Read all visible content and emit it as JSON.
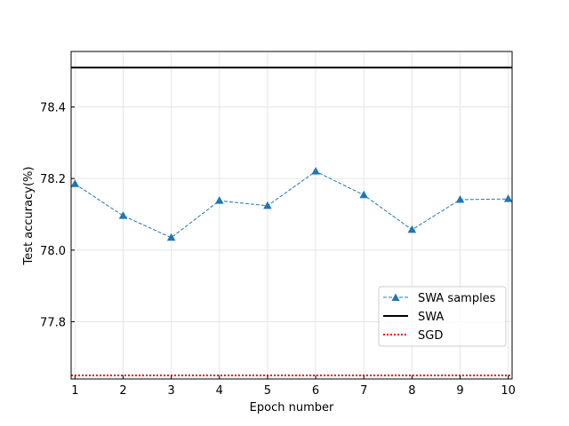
{
  "chart_data": {
    "type": "line",
    "title": "",
    "xlabel": "Epoch number",
    "ylabel": "Test accuracy(%)",
    "x": [
      1,
      2,
      3,
      4,
      5,
      6,
      7,
      8,
      9,
      10
    ],
    "xlim": [
      0.92,
      10.08
    ],
    "ylim": [
      77.64,
      78.555
    ],
    "xticks": [
      "1",
      "2",
      "3",
      "4",
      "5",
      "6",
      "7",
      "8",
      "9",
      "10"
    ],
    "yticks": [
      {
        "value": 77.8,
        "label": "77.8"
      },
      {
        "value": 78.0,
        "label": "78.0"
      },
      {
        "value": 78.2,
        "label": "78.2"
      },
      {
        "value": 78.4,
        "label": "78.4"
      }
    ],
    "grid": true,
    "legend_position": "lower-right",
    "series": [
      {
        "name": "SWA samples",
        "style": "dashed",
        "marker": "triangle",
        "color": "#1f77b4",
        "values": [
          78.185,
          78.096,
          78.035,
          78.138,
          78.124,
          78.22,
          78.154,
          78.057,
          78.141,
          78.143
        ]
      },
      {
        "name": "SWA",
        "style": "solid",
        "color": "#000000",
        "constant": 78.51
      },
      {
        "name": "SGD",
        "style": "dotted",
        "color": "#ff0000",
        "constant": 77.65
      }
    ]
  }
}
